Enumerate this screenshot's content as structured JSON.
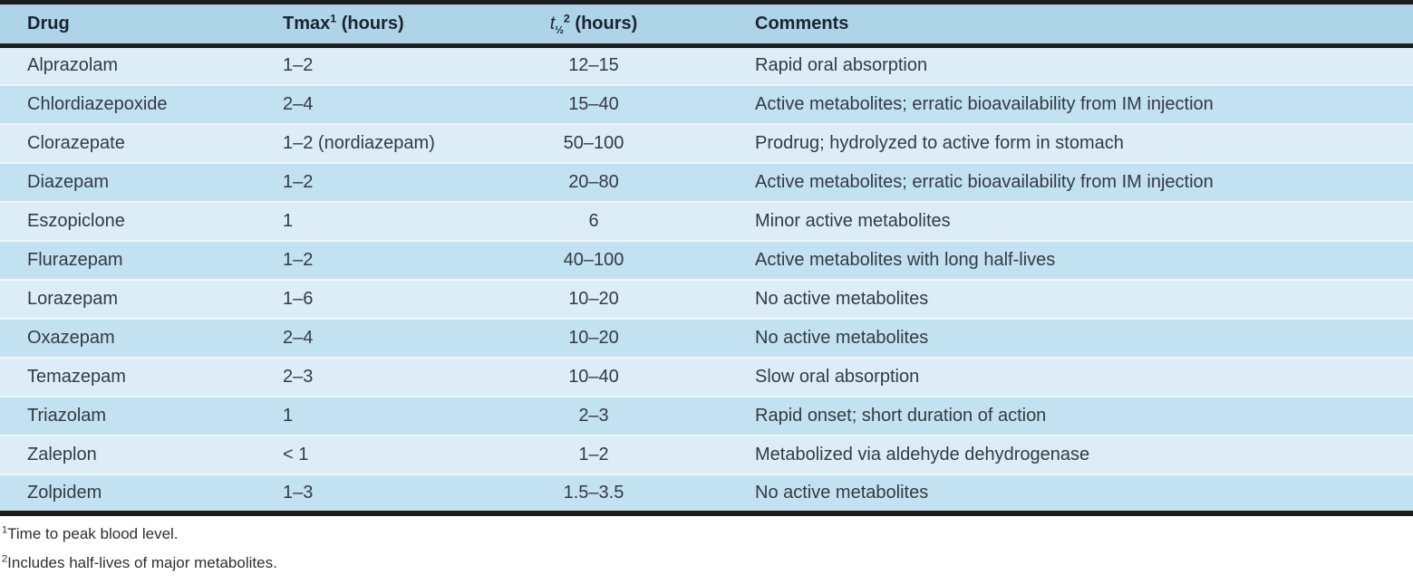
{
  "table": {
    "headers": {
      "drug": "Drug",
      "tmax_base": "Tmax",
      "tmax_sup": "1",
      "tmax_unit": "(hours)",
      "thalf_symbol": "t",
      "thalf_sub": "½",
      "thalf_sup": "2",
      "thalf_unit": "(hours)",
      "comments": "Comments"
    },
    "rows": [
      {
        "drug": "Alprazolam",
        "tmax": "1–2",
        "thalf": "12–15",
        "comments": "Rapid oral absorption"
      },
      {
        "drug": "Chlordiazepoxide",
        "tmax": "2–4",
        "thalf": "15–40",
        "comments": "Active metabolites; erratic bioavailability from IM injection"
      },
      {
        "drug": "Clorazepate",
        "tmax": "1–2 (nordiazepam)",
        "thalf": "50–100",
        "comments": "Prodrug; hydrolyzed to active form in stomach"
      },
      {
        "drug": "Diazepam",
        "tmax": "1–2",
        "thalf": "20–80",
        "comments": "Active metabolites; erratic bioavailability from IM injection"
      },
      {
        "drug": "Eszopiclone",
        "tmax": "1",
        "thalf": "6",
        "comments": "Minor active metabolites"
      },
      {
        "drug": "Flurazepam",
        "tmax": "1–2",
        "thalf": "40–100",
        "comments": "Active metabolites with long half-lives"
      },
      {
        "drug": "Lorazepam",
        "tmax": "1–6",
        "thalf": "10–20",
        "comments": "No active metabolites"
      },
      {
        "drug": "Oxazepam",
        "tmax": "2–4",
        "thalf": "10–20",
        "comments": "No active metabolites"
      },
      {
        "drug": "Temazepam",
        "tmax": "2–3",
        "thalf": "10–40",
        "comments": "Slow oral absorption"
      },
      {
        "drug": "Triazolam",
        "tmax": "1",
        "thalf": "2–3",
        "comments": "Rapid onset; short duration of action"
      },
      {
        "drug": "Zaleplon",
        "tmax": "< 1",
        "thalf": "1–2",
        "comments": "Metabolized via aldehyde dehydrogenase"
      },
      {
        "drug": "Zolpidem",
        "tmax": "1–3",
        "thalf": "1.5–3.5",
        "comments": "No active metabolites"
      }
    ]
  },
  "footnotes": [
    {
      "marker": "1",
      "text": "Time to peak blood level."
    },
    {
      "marker": "2",
      "text": "Includes half-lives of major metabolites."
    }
  ],
  "colors": {
    "header_bg": "#aed4e8",
    "row_light": "#dcedf7",
    "row_dark": "#c2e1f1",
    "border": "#1c1c1c"
  }
}
